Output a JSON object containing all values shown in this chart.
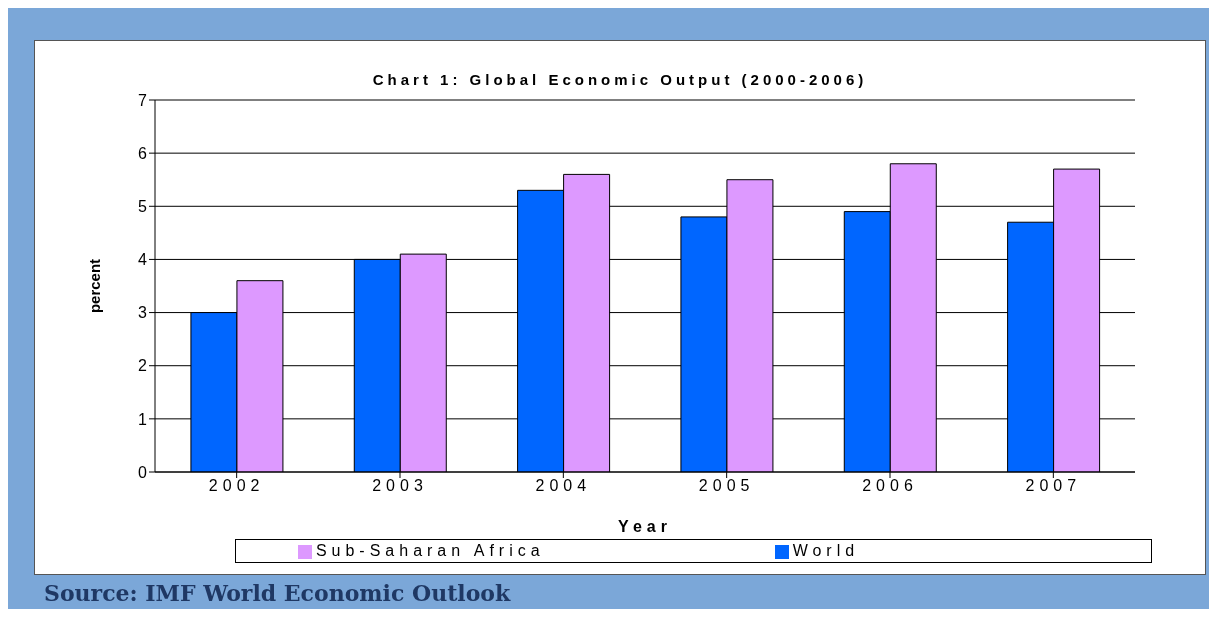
{
  "chart_data": {
    "type": "bar",
    "title": "Chart 1: Global Economic Output (2000-2006)",
    "xlabel": "Year",
    "ylabel": "percent",
    "categories": [
      "2002",
      "2003",
      "2004",
      "2005",
      "2006",
      "2007"
    ],
    "series": [
      {
        "name": "World",
        "color": "#0066ff",
        "values": [
          3.0,
          4.0,
          5.3,
          4.8,
          4.9,
          4.7
        ]
      },
      {
        "name": "Sub-Saharan Africa",
        "color": "#dd99ff",
        "values": [
          3.6,
          4.1,
          5.6,
          5.5,
          5.8,
          5.7
        ]
      }
    ],
    "ylim": [
      0,
      7
    ],
    "yticks": [
      0,
      1,
      2,
      3,
      4,
      5,
      6,
      7
    ],
    "grid": "y",
    "legend": "bottom",
    "annotations": [
      "Source:  IMF World Economic Outlook"
    ]
  }
}
